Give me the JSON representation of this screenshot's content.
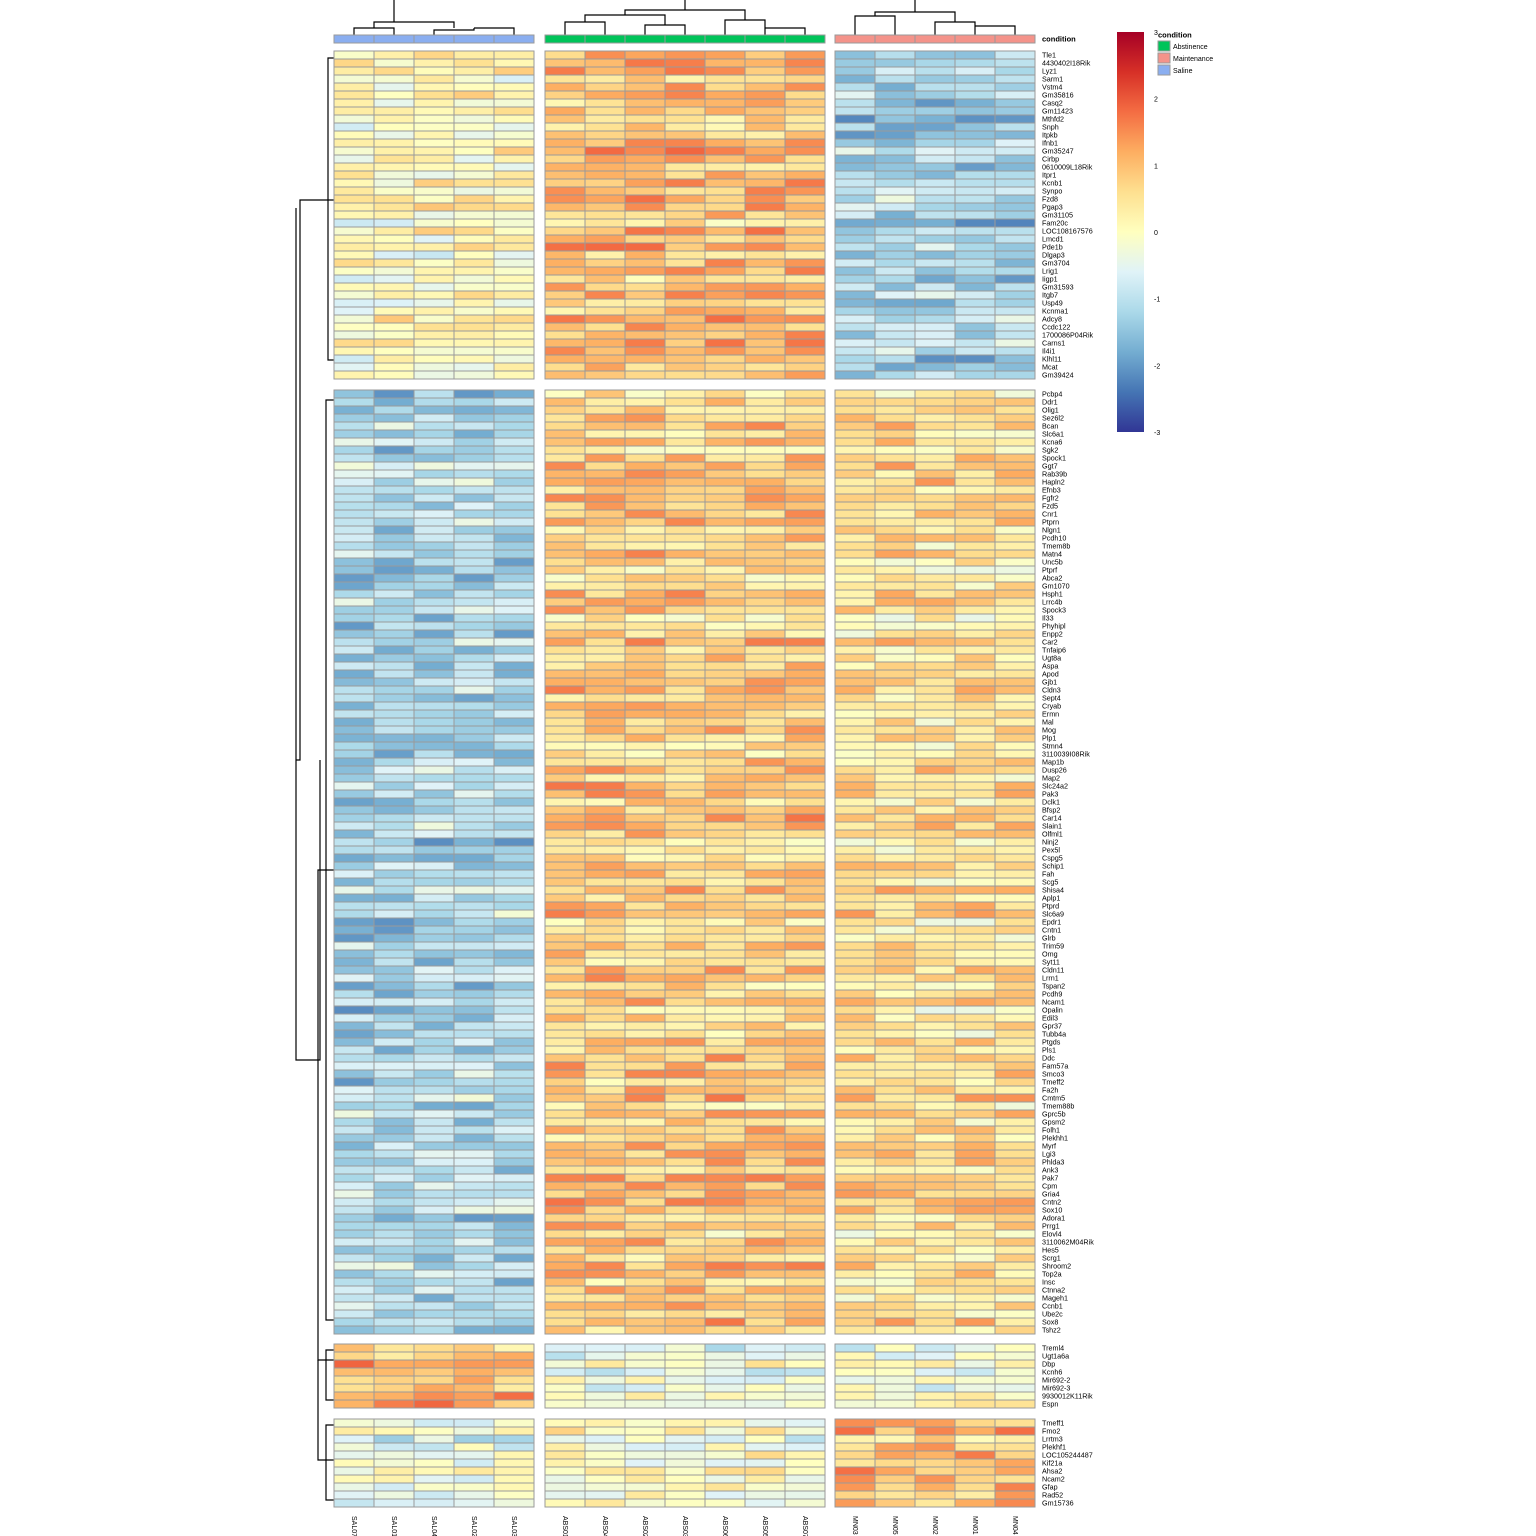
{
  "chart_data": {
    "type": "heatmap",
    "annotation": {
      "label": "condition",
      "legend_title": "condition",
      "levels": [
        {
          "name": "Abstinence",
          "color": "#00c45a"
        },
        {
          "name": "Maintenance",
          "color": "#f4938a"
        },
        {
          "name": "Saline",
          "color": "#8aaef0"
        }
      ]
    },
    "color_scale": {
      "min": -3,
      "max": 3,
      "ticks": [
        "3",
        "2",
        "1",
        "0",
        "-1",
        "-2",
        "-3"
      ],
      "colors": [
        "#313695",
        "#4575b4",
        "#74add1",
        "#abd9e9",
        "#e0f3f8",
        "#ffffbf",
        "#fee090",
        "#fdae61",
        "#f46d43",
        "#d73027",
        "#a50026"
      ]
    },
    "column_groups": [
      {
        "condition": "Saline",
        "columns": [
          "SAL07",
          "SAL01",
          "SAL04",
          "SAL02",
          "SAL03"
        ]
      },
      {
        "condition": "Abstinence",
        "columns": [
          "ABS01",
          "ABS04",
          "ABS02",
          "ABS03",
          "ABS06",
          "ABS05",
          "ABS07"
        ]
      },
      {
        "condition": "Maintenance",
        "columns": [
          "MN03",
          "MN05",
          "MN02",
          "MN01",
          "MN04"
        ]
      }
    ],
    "row_groups": [
      {
        "genes": [
          "Tle1",
          "4430402I18Rik",
          "Lyz1",
          "Sarm1",
          "Vstm4",
          "Gm35816",
          "Casq2",
          "Gm11423",
          "Mthfd2",
          "Snph",
          "Itpkb",
          "Ifnb1",
          "Gm35247",
          "Cirbp",
          "0610009L18Rik",
          "Itpr1",
          "Kcnb1",
          "Synpo",
          "Fzd8",
          "Pgap3",
          "Gm31105",
          "Fam20c",
          "LOC108167576",
          "Lmcd1",
          "Pde1b",
          "Dlgap3",
          "Gm3704",
          "Lrig1",
          "Iigp1",
          "Gm31593",
          "Itgb7",
          "Usp49",
          "Kcnma1",
          "Adcy8",
          "Ccdc122",
          "1700086P04Rik",
          "Carns1",
          "Il4i1",
          "Klhl11",
          "Mcat",
          "Gm39424"
        ],
        "pattern": [
          0.0,
          0.9,
          -1.3
        ]
      },
      {
        "genes": [
          "Pcbp4",
          "Ddr1",
          "Olig1",
          "Sez6l2",
          "Bcan",
          "Slc6a1",
          "Kcna6",
          "Sgk2",
          "Spock1",
          "Ggt7",
          "Rab39b",
          "Hapln2",
          "Efnb3",
          "Fgfr2",
          "Fzd5",
          "Cnr1",
          "Ptprn",
          "Nlgn1",
          "Pcdh10",
          "Tmem8b",
          "Matn4",
          "Unc5b",
          "Ptprf",
          "Abca2",
          "Gm1070",
          "Hsph1",
          "Lrrc4b",
          "Spock3",
          "Il33",
          "Phyhipl",
          "Enpp2",
          "Car2",
          "Tnfaip6",
          "Ugt8a",
          "Aspa",
          "Apod",
          "Gjb1",
          "Cldn3",
          "Sept4",
          "Cryab",
          "Ermn",
          "Mal",
          "Mog",
          "Plp1",
          "Stmn4",
          "3110039I08Rik",
          "Map1b",
          "Dusp26",
          "Map2",
          "Slc24a2",
          "Pak3",
          "Dclk1",
          "Bfsp2",
          "Car14",
          "Slain1",
          "Olfml1",
          "Ninj2",
          "Pex5l",
          "Cspg5",
          "Schip1",
          "Fah",
          "Scg5",
          "Shisa4",
          "Aplp1",
          "Ptprd",
          "Slc6a9",
          "Epdr1",
          "Cntn1",
          "Glrb",
          "Trim59",
          "Omg",
          "Syt11",
          "Cldn11",
          "Lrrn1",
          "Tspan2",
          "Pcdh9",
          "Ncam1",
          "Opalin",
          "Edil3",
          "Gpr37",
          "Tubb4a",
          "Ptgds",
          "Pls1",
          "Ddc",
          "Fam57a",
          "Smco3",
          "Tmeff2",
          "Fa2h",
          "Cmtm5",
          "Tmem88b",
          "Gprc5b",
          "Gpsm2",
          "Folh1",
          "Plekhh1",
          "Myrf",
          "Lgi3",
          "Phlda3",
          "Ank3",
          "Pak7",
          "Cpm",
          "Gria4",
          "Cntn2",
          "Sox10",
          "Adora1",
          "Prrg1",
          "Elovl4",
          "3110062M04Rik",
          "Hes5",
          "Scrg1",
          "Shroom2",
          "Top2a",
          "Insc",
          "Ctnna2",
          "Mageh1",
          "Ccnb1",
          "Ube2c",
          "Sox8",
          "Tshz2"
        ],
        "pattern": [
          -1.2,
          0.8,
          0.5
        ]
      },
      {
        "genes": [
          "Treml4",
          "Ugt1a6a",
          "Dbp",
          "Kcnh6",
          "Mir692-2",
          "Mir692-3",
          "9930012K11Rik",
          "Espn"
        ],
        "pattern": [
          1.1,
          -0.3,
          -0.2
        ]
      },
      {
        "genes": [
          "Tmeff1",
          "Fmo2",
          "Lrrtm3",
          "Plekhf1",
          "LOC105244487",
          "Kif21a",
          "Ahsa2",
          "Ncam2",
          "Gfap",
          "Rad52",
          "Gm15736"
        ],
        "pattern": [
          -0.4,
          -0.1,
          0.9
        ]
      }
    ]
  }
}
